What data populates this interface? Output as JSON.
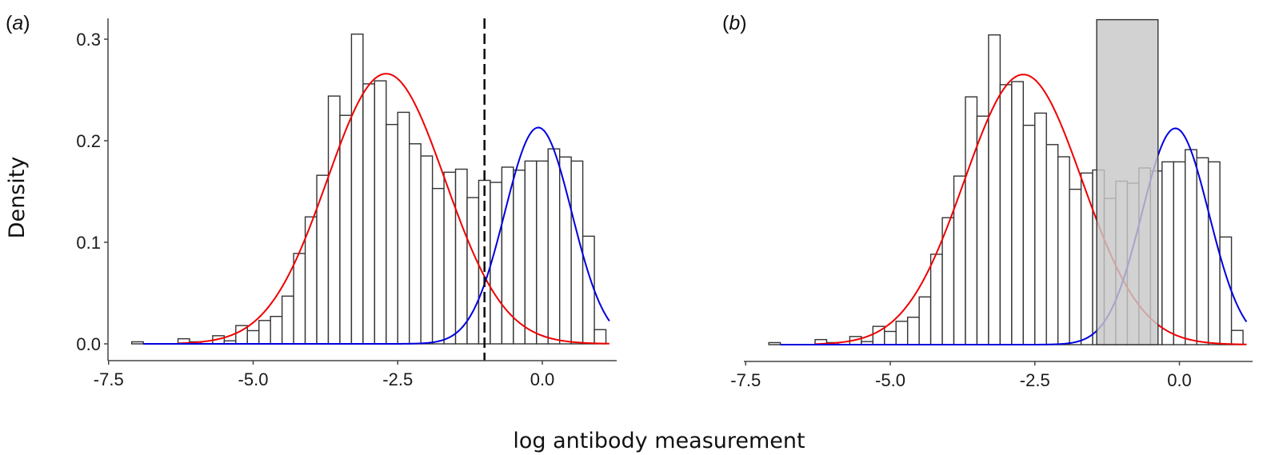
{
  "figure": {
    "xlabel": "log antibody measurement",
    "ylabel": "Density"
  },
  "colors": {
    "bar_stroke": "#333333",
    "bar_fill": "#ffffff",
    "red_curve": "#ee0000",
    "blue_curve": "#0000dd",
    "axis": "#444444",
    "cutoff_line": "#111111",
    "region_fill": "#c8c8c8",
    "region_stroke": "#333333"
  },
  "chart_data": [
    {
      "type": "bar",
      "panel": "a",
      "label_prefix": "(",
      "label_letter": "a",
      "label_suffix": ")",
      "xlabel": "log antibody measurement",
      "ylabel": "Density",
      "xlim": [
        -7.5,
        1.3
      ],
      "ylim": [
        0.0,
        0.32
      ],
      "xticks": [
        -7.5,
        -5.0,
        -2.5,
        0.0
      ],
      "xtick_labels": [
        "-7.5",
        "-5.0",
        "-2.5",
        "0.0"
      ],
      "yticks": [
        0.0,
        0.1,
        0.2,
        0.3
      ],
      "ytick_labels": [
        "0.0",
        "0.1",
        "0.2",
        "0.3"
      ],
      "show_y_axis": true,
      "bin_width": 0.2,
      "bin_start": -7.1,
      "densities": [
        0.002,
        0.0,
        0.0,
        0.0,
        0.005,
        0.002,
        0.0,
        0.008,
        0.003,
        0.018,
        0.013,
        0.023,
        0.027,
        0.047,
        0.089,
        0.125,
        0.166,
        0.244,
        0.225,
        0.305,
        0.256,
        0.259,
        0.216,
        0.228,
        0.197,
        0.185,
        0.153,
        0.169,
        0.172,
        0.144,
        0.161,
        0.159,
        0.174,
        0.171,
        0.18,
        0.18,
        0.192,
        0.184,
        0.18,
        0.106,
        0.014
      ],
      "series": [
        {
          "name": "red component",
          "kind": "normal",
          "mean": -2.7,
          "sd": 1.02,
          "peak": 0.266,
          "x_range": [
            -6.3,
            1.16
          ],
          "color": "#ee0000"
        },
        {
          "name": "blue component",
          "kind": "normal",
          "mean": -0.07,
          "sd": 0.58,
          "peak": 0.213,
          "x_range": [
            -6.9,
            1.16
          ],
          "color": "#0000dd"
        }
      ],
      "cutoff": {
        "x": -1.0,
        "style": "dashed"
      }
    },
    {
      "type": "bar",
      "panel": "b",
      "label_prefix": "(",
      "label_letter": "b",
      "label_suffix": ")",
      "xlabel": "log antibody measurement",
      "ylabel": "Density",
      "xlim": [
        -7.5,
        1.3
      ],
      "ylim": [
        0.0,
        0.32
      ],
      "xticks": [
        -7.5,
        -5.0,
        -2.5,
        0.0
      ],
      "xtick_labels": [
        "-7.5",
        "-5.0",
        "-2.5",
        "0.0"
      ],
      "show_y_axis": false,
      "bin_width": 0.2,
      "bin_start": -7.1,
      "densities": [
        0.002,
        0.0,
        0.0,
        0.0,
        0.005,
        0.002,
        0.0,
        0.008,
        0.003,
        0.018,
        0.013,
        0.023,
        0.027,
        0.047,
        0.089,
        0.125,
        0.166,
        0.244,
        0.225,
        0.305,
        0.256,
        0.259,
        0.216,
        0.228,
        0.197,
        0.185,
        0.153,
        0.169,
        0.172,
        0.144,
        0.161,
        0.159,
        0.174,
        0.171,
        0.18,
        0.18,
        0.192,
        0.184,
        0.18,
        0.106,
        0.014
      ],
      "series": [
        {
          "name": "red component",
          "kind": "normal",
          "mean": -2.7,
          "sd": 1.02,
          "peak": 0.266,
          "x_range": [
            -6.3,
            1.16
          ],
          "color": "#ee0000"
        },
        {
          "name": "blue component",
          "kind": "normal",
          "mean": -0.07,
          "sd": 0.58,
          "peak": 0.213,
          "x_range": [
            -6.9,
            1.16
          ],
          "color": "#0000dd"
        }
      ],
      "shaded_region": {
        "x": [
          -1.43,
          -0.37
        ],
        "y_top": 0.32
      }
    }
  ]
}
